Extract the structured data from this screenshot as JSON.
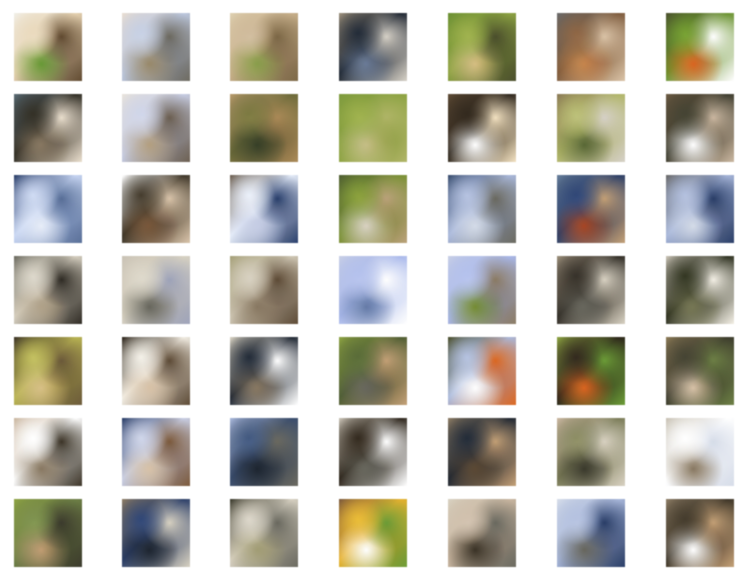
{
  "gallery": {
    "rows": 7,
    "cols": 7,
    "tiles": [
      [
        "#e6d4b6",
        "#5f4a33",
        "#6f9b3f",
        "#f1efe8"
      ],
      [
        "#bfc9de",
        "#6d6a61",
        "#9b8d71",
        "#e7ddd3"
      ],
      [
        "#c6b08f",
        "#7b6849",
        "#8ea054",
        "#ddd0b4"
      ],
      [
        "#1f2630",
        "#d6d1c8",
        "#6f7f98",
        "#9a8f7d"
      ],
      [
        "#8ea24a",
        "#4b4f2f",
        "#d5c08c",
        "#6d8f3a"
      ],
      [
        "#7a5a3f",
        "#d8c3aa",
        "#c38a55",
        "#6a6a6a"
      ],
      [
        "#6a8f34",
        "#ffffff",
        "#d36b2a",
        "#4b5131"
      ],
      [
        "#2d2a22",
        "#e9dfd0",
        "#8b7c67",
        "#5a6a72"
      ],
      [
        "#c9cfe4",
        "#6b5f52",
        "#b4a287",
        "#e8e3dc"
      ],
      [
        "#6b6a3d",
        "#a88a5d",
        "#38412a",
        "#b59a70"
      ],
      [
        "#8ea24a",
        "#b0b46e",
        "#c6c08f",
        "#7f9a45"
      ],
      [
        "#2b241b",
        "#f1e1c4",
        "#ffffff",
        "#5d4b38"
      ],
      [
        "#b0b46e",
        "#d6d1c8",
        "#5d6a3b",
        "#8a7a5a"
      ],
      [
        "#3c3b2e",
        "#c9b7a3",
        "#ffffff",
        "#6a5a45"
      ],
      [
        "#c9d6f0",
        "#5a6f94",
        "#e9eef8",
        "#2c3e64"
      ],
      [
        "#3b3428",
        "#d7c4ad",
        "#7a5a3f",
        "#ffffff"
      ],
      [
        "#e8eef9",
        "#2b3f68",
        "#c9cfe4",
        "#6b5f52"
      ],
      [
        "#7a8f3c",
        "#b8a27e",
        "#d9d3c6",
        "#4f5d35"
      ],
      [
        "#aab8d8",
        "#6b6a61",
        "#d7dde8",
        "#3b4d6b"
      ],
      [
        "#2c3e64",
        "#c0a07b",
        "#a34a2a",
        "#6a7f98"
      ],
      [
        "#a8b6d6",
        "#2c3e64",
        "#d7dde8",
        "#6a6a6a"
      ],
      [
        "#d7d1c3",
        "#2f2b25",
        "#b2a58f",
        "#6b6a61"
      ],
      [
        "#d8d2c3",
        "#9fa4b8",
        "#6b6a61",
        "#c8c2b6"
      ],
      [
        "#cfc8b7",
        "#5d4b38",
        "#8b7c67",
        "#a4a07c"
      ],
      [
        "#aab8e6",
        "#ffffff",
        "#6b7fa6",
        "#c9cfe4"
      ],
      [
        "#aab8e6",
        "#8b7c67",
        "#7a8f3c",
        "#c9cfe4"
      ],
      [
        "#2f2b25",
        "#d7d1c3",
        "#6b6a61",
        "#9a8f7d"
      ],
      [
        "#2c2f1f",
        "#f3efe6",
        "#7a7b5a",
        "#c8c2b6"
      ],
      [
        "#b8b45b",
        "#6b5a3d",
        "#d7c28f",
        "#3b3428"
      ],
      [
        "#f3efe6",
        "#5d4b38",
        "#d7c4ad",
        "#2b241b"
      ],
      [
        "#1f2630",
        "#ffffff",
        "#8b7c67",
        "#d7d1c3"
      ],
      [
        "#4f5d35",
        "#c0a07b",
        "#6b6a61",
        "#8ea24a"
      ],
      [
        "#aab8d8",
        "#d36b2a",
        "#ffffff",
        "#4b4f2f"
      ],
      [
        "#2b241b",
        "#6f9b3f",
        "#d36b2a",
        "#8ea24a"
      ],
      [
        "#3c3b2e",
        "#6f7f4a",
        "#d7c4ad",
        "#8a7a5a"
      ],
      [
        "#ffffff",
        "#3b3428",
        "#8b7c67",
        "#c9b7a3"
      ],
      [
        "#c9cfe4",
        "#7a5a3f",
        "#d7c4ad",
        "#2c3e64"
      ],
      [
        "#3b4d6b",
        "#6b6a61",
        "#1f2630",
        "#a8b6d6"
      ],
      [
        "#2b241b",
        "#ffffff",
        "#6b6a61",
        "#c8c2b6"
      ],
      [
        "#1f2630",
        "#c0a07b",
        "#5d4b38",
        "#8b7c67"
      ],
      [
        "#7a7b5a",
        "#d7d1c3",
        "#3c3b2e",
        "#c9b7a3"
      ],
      [
        "#ffffff",
        "#d7dde8",
        "#8b7c67",
        "#c8c2b6"
      ],
      [
        "#6f7f4a",
        "#3c3b2e",
        "#c0a07b",
        "#8ea24a"
      ],
      [
        "#2c3e64",
        "#d7d1c3",
        "#1f2630",
        "#8b7c67"
      ],
      [
        "#d7d1c3",
        "#6b6a61",
        "#a4a07c",
        "#3c3b2e"
      ],
      [
        "#e2b13b",
        "#6f9b3f",
        "#ffffff",
        "#7a5a3f"
      ],
      [
        "#c9b7a3",
        "#6b6a61",
        "#3b3428",
        "#d7d1c3"
      ],
      [
        "#aab8d8",
        "#2c3e64",
        "#6b6a61",
        "#d7dde8"
      ],
      [
        "#3b3428",
        "#c0a07b",
        "#ffffff",
        "#8b7c67"
      ]
    ]
  }
}
